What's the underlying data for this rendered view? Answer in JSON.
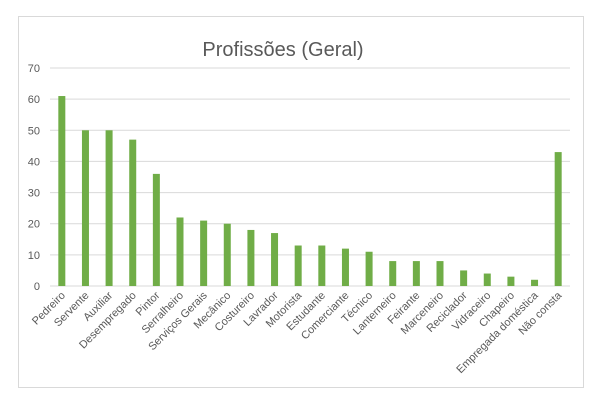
{
  "chart_data": {
    "type": "bar",
    "title": "Profissões (Geral)",
    "xlabel": "",
    "ylabel": "",
    "ylim": [
      0,
      70
    ],
    "yticks": [
      0,
      10,
      20,
      30,
      40,
      50,
      60,
      70
    ],
    "grid": true,
    "legend": "none",
    "bar_color": "#70ad47",
    "categories": [
      "Pedreiro",
      "Servente",
      "Auxiliar",
      "Desempregado",
      "Pintor",
      "Serralheiro",
      "Serviços Gerais",
      "Mecânico",
      "Costureiro",
      "Lavrador",
      "Motorista",
      "Estudante",
      "Comerciante",
      "Técnico",
      "Lanterneiro",
      "Feirante",
      "Marceneiro",
      "Reciclador",
      "Vidraceiro",
      "Chapeiro",
      "Empregada doméstica",
      "Não consta"
    ],
    "values": [
      61,
      50,
      50,
      47,
      36,
      22,
      21,
      20,
      18,
      17,
      13,
      13,
      12,
      11,
      8,
      8,
      8,
      5,
      4,
      3,
      2,
      43
    ]
  }
}
